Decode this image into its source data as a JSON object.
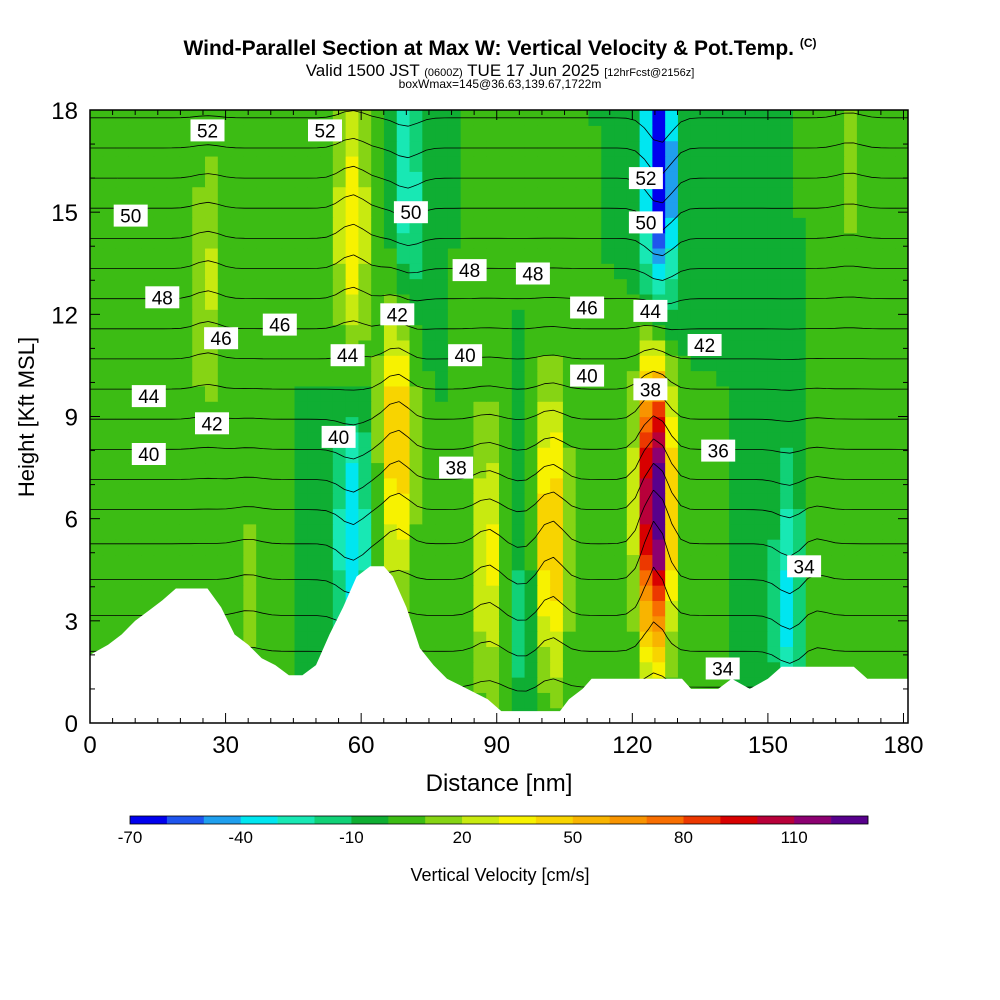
{
  "title": {
    "main": "Wind-Parallel Section at Max W: Vertical Velocity & Pot.Temp.",
    "main_suffix": "(C)",
    "valid_prefix": "Valid 1500 JST",
    "valid_utc": "(0600Z)",
    "valid_date": "TUE 17 Jun 2025",
    "valid_fcst": "[12hrFcst@2156z]",
    "boxinfo": "boxWmax=145@36.63,139.67,1722m"
  },
  "chart_data": {
    "type": "heatmap",
    "xlabel": "Distance [nm]",
    "ylabel": "Height [Kft MSL]",
    "xlim": [
      0,
      181
    ],
    "ylim": [
      0,
      18
    ],
    "xticks": [
      0,
      30,
      60,
      90,
      120,
      150,
      180
    ],
    "yticks": [
      0,
      3,
      6,
      9,
      12,
      15,
      18
    ],
    "colorbar": {
      "label": "Vertical Velocity [cm/s]",
      "min": -70,
      "step": 10,
      "tick_labels": [
        "-70",
        "-40",
        "-10",
        "20",
        "50",
        "80",
        "110"
      ],
      "tick_values": [
        -70,
        -40,
        -10,
        20,
        50,
        80,
        110
      ],
      "colors": [
        "#0000ee",
        "#1f55ee",
        "#1f9fee",
        "#00e6f0",
        "#18e8b4",
        "#11d177",
        "#0fae33",
        "#3cbc14",
        "#86d414",
        "#c8ea10",
        "#f7f200",
        "#f8d400",
        "#f8b400",
        "#f89400",
        "#f86e00",
        "#ec3800",
        "#d80000",
        "#b8003a",
        "#8c0071",
        "#58008c"
      ]
    },
    "background_w": 0,
    "w_features": [
      {
        "x": 26,
        "y": 13,
        "w": 22
      },
      {
        "x": 58,
        "y": 14.5,
        "w": 40
      },
      {
        "x": 58,
        "y": 5.5,
        "w": -40
      },
      {
        "x": 68,
        "y": 8.5,
        "w": 55
      },
      {
        "x": 70,
        "y": 15.5,
        "w": -30
      },
      {
        "x": 88,
        "y": 5,
        "w": 35
      },
      {
        "x": 102,
        "y": 5.5,
        "w": 55
      },
      {
        "x": 125,
        "y": 6.5,
        "w": 140
      },
      {
        "x": 126,
        "y": 16,
        "w": -75
      },
      {
        "x": 155,
        "y": 3.5,
        "w": -35
      },
      {
        "x": 160,
        "y": 4.5,
        "w": 15
      },
      {
        "x": 168,
        "y": 17,
        "w": 15
      },
      {
        "x": 35,
        "y": 4,
        "w": 12
      },
      {
        "x": 96,
        "y": 3.2,
        "w": -15
      }
    ],
    "terrain": [
      [
        0,
        2
      ],
      [
        4,
        2.3
      ],
      [
        7,
        2.6
      ],
      [
        10,
        3
      ],
      [
        13,
        3.3
      ],
      [
        16,
        3.6
      ],
      [
        19,
        3.95
      ],
      [
        26,
        3.95
      ],
      [
        29,
        3.4
      ],
      [
        32,
        2.6
      ],
      [
        35,
        2.3
      ],
      [
        38,
        1.9
      ],
      [
        41,
        1.7
      ],
      [
        44,
        1.4
      ],
      [
        47,
        1.4
      ],
      [
        50,
        1.7
      ],
      [
        53,
        2.6
      ],
      [
        56,
        3.4
      ],
      [
        59,
        4.3
      ],
      [
        62,
        4.6
      ],
      [
        65,
        4.6
      ],
      [
        67,
        4.3
      ],
      [
        70,
        3.4
      ],
      [
        73,
        2.2
      ],
      [
        76,
        1.7
      ],
      [
        79,
        1.3
      ],
      [
        82,
        1.1
      ],
      [
        85,
        0.9
      ],
      [
        88,
        0.7
      ],
      [
        91,
        0.35
      ],
      [
        96,
        0.35
      ],
      [
        104,
        0.35
      ],
      [
        106,
        0.7
      ],
      [
        109,
        1.0
      ],
      [
        111,
        1.3
      ],
      [
        122,
        1.3
      ],
      [
        131,
        1.3
      ],
      [
        133,
        1.0
      ],
      [
        139,
        1.0
      ],
      [
        142,
        1.3
      ],
      [
        146,
        1.0
      ],
      [
        150,
        1.3
      ],
      [
        153,
        1.65
      ],
      [
        169,
        1.65
      ],
      [
        172,
        1.3
      ],
      [
        181,
        1.3
      ]
    ],
    "theta_levels": [
      34,
      35,
      36,
      37,
      38,
      39,
      40,
      41,
      42,
      43,
      44,
      45,
      46,
      47,
      48,
      49,
      50,
      51,
      52,
      53
    ],
    "theta_labels": [
      {
        "x": 26,
        "y": 17.4,
        "text": "52"
      },
      {
        "x": 52,
        "y": 17.4,
        "text": "52"
      },
      {
        "x": 123,
        "y": 16.0,
        "text": "52"
      },
      {
        "x": 9,
        "y": 14.9,
        "text": "50"
      },
      {
        "x": 71,
        "y": 15.0,
        "text": "50"
      },
      {
        "x": 123,
        "y": 14.7,
        "text": "50"
      },
      {
        "x": 16,
        "y": 12.5,
        "text": "48"
      },
      {
        "x": 84,
        "y": 13.3,
        "text": "48"
      },
      {
        "x": 98,
        "y": 13.2,
        "text": "48"
      },
      {
        "x": 29,
        "y": 11.3,
        "text": "46"
      },
      {
        "x": 42,
        "y": 11.7,
        "text": "46"
      },
      {
        "x": 110,
        "y": 12.2,
        "text": "46"
      },
      {
        "x": 124,
        "y": 12.1,
        "text": "44"
      },
      {
        "x": 57,
        "y": 10.8,
        "text": "44"
      },
      {
        "x": 13,
        "y": 9.6,
        "text": "44"
      },
      {
        "x": 68,
        "y": 12.0,
        "text": "42"
      },
      {
        "x": 136,
        "y": 11.1,
        "text": "42"
      },
      {
        "x": 27,
        "y": 8.8,
        "text": "42"
      },
      {
        "x": 83,
        "y": 10.8,
        "text": "40"
      },
      {
        "x": 110,
        "y": 10.2,
        "text": "40"
      },
      {
        "x": 55,
        "y": 8.4,
        "text": "40"
      },
      {
        "x": 13,
        "y": 7.9,
        "text": "40"
      },
      {
        "x": 124,
        "y": 9.8,
        "text": "38"
      },
      {
        "x": 81,
        "y": 7.5,
        "text": "38"
      },
      {
        "x": 139,
        "y": 8.0,
        "text": "36"
      },
      {
        "x": 158,
        "y": 4.6,
        "text": "34"
      },
      {
        "x": 140,
        "y": 1.6,
        "text": "34"
      }
    ]
  }
}
